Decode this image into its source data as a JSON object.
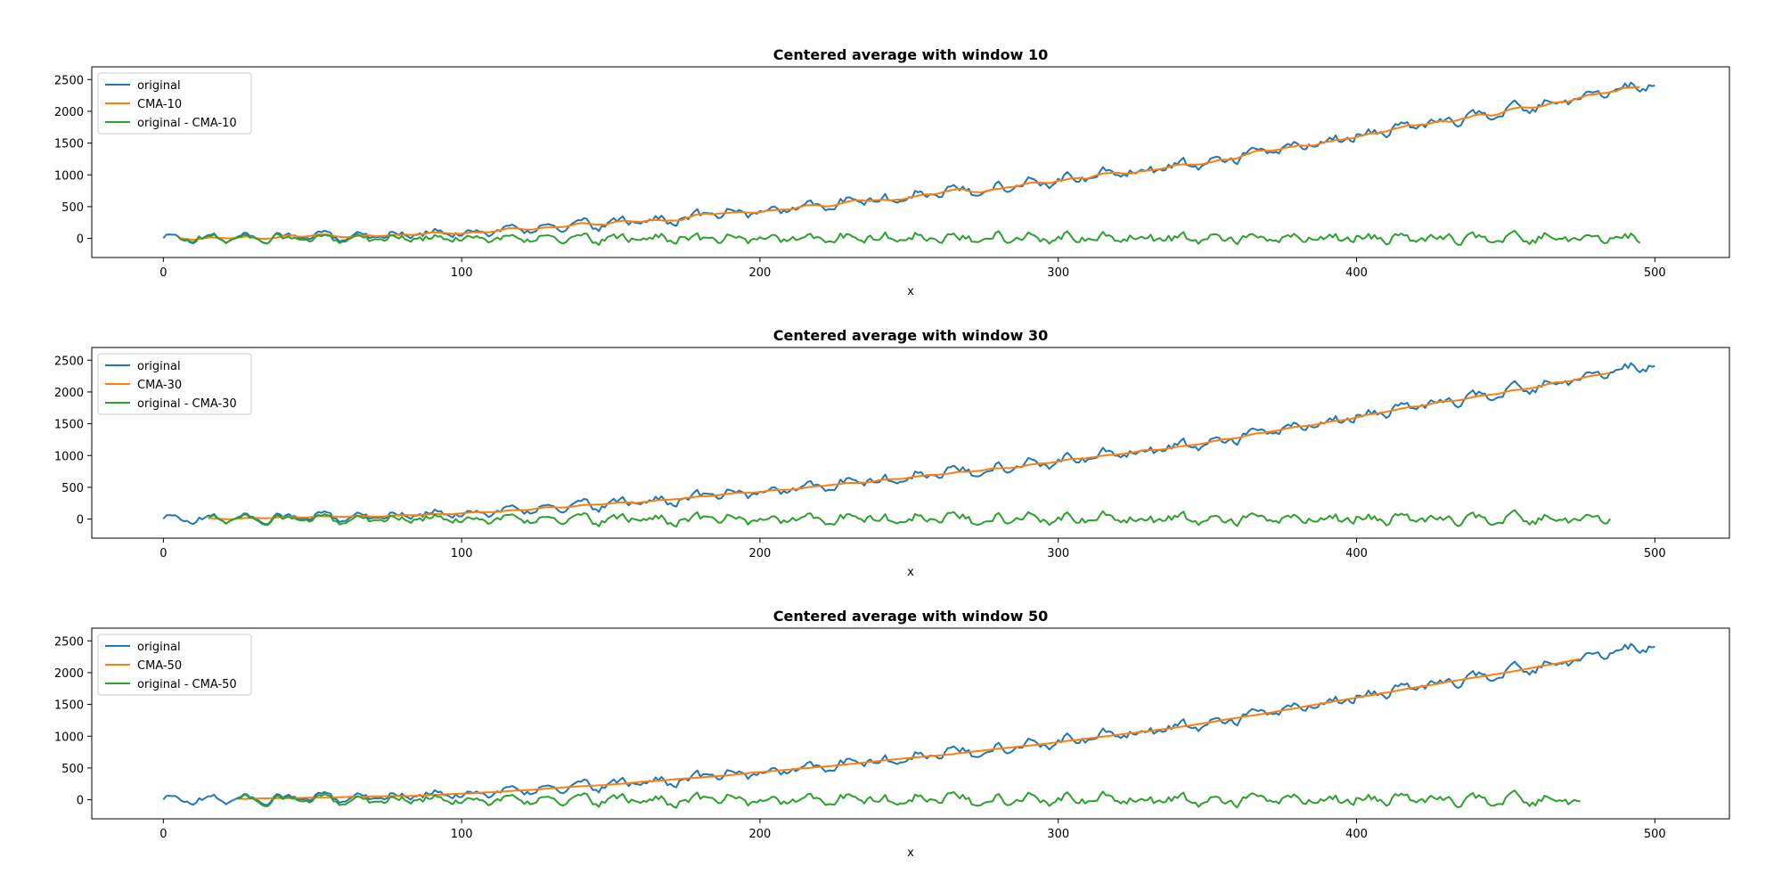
{
  "colors": {
    "original": "#1f77b4",
    "cma": "#ff7f0e",
    "residual": "#2ca02c"
  },
  "chart_data": [
    {
      "type": "line",
      "title": "Centered average with window 10",
      "xlabel": "x",
      "ylabel": "",
      "window": 10,
      "xlim": [
        -24,
        525
      ],
      "ylim": [
        -300,
        2700
      ],
      "xticks": [
        0,
        100,
        200,
        300,
        400,
        500
      ],
      "yticks": [
        0,
        500,
        1000,
        1500,
        2000,
        2500
      ],
      "grid": false,
      "legend_position": "upper-left",
      "series": [
        {
          "name": "original",
          "key": "original",
          "x_range": [
            0,
            500
          ]
        },
        {
          "name": "CMA-10",
          "key": "cma",
          "x_range": [
            5,
            495
          ]
        },
        {
          "name": "original - CMA-10",
          "key": "residual",
          "x_range": [
            5,
            495
          ]
        }
      ],
      "trend_points": [
        [
          0,
          0
        ],
        [
          50,
          25
        ],
        [
          100,
          90
        ],
        [
          150,
          230
        ],
        [
          200,
          420
        ],
        [
          250,
          660
        ],
        [
          300,
          920
        ],
        [
          350,
          1200
        ],
        [
          400,
          1620
        ],
        [
          450,
          2000
        ],
        [
          500,
          2450
        ]
      ]
    },
    {
      "type": "line",
      "title": "Centered average with window 30",
      "xlabel": "x",
      "ylabel": "",
      "window": 30,
      "xlim": [
        -24,
        525
      ],
      "ylim": [
        -300,
        2700
      ],
      "xticks": [
        0,
        100,
        200,
        300,
        400,
        500
      ],
      "yticks": [
        0,
        500,
        1000,
        1500,
        2000,
        2500
      ],
      "grid": false,
      "legend_position": "upper-left",
      "series": [
        {
          "name": "original",
          "key": "original",
          "x_range": [
            0,
            500
          ]
        },
        {
          "name": "CMA-30",
          "key": "cma",
          "x_range": [
            15,
            485
          ]
        },
        {
          "name": "original - CMA-30",
          "key": "residual",
          "x_range": [
            15,
            485
          ]
        }
      ],
      "trend_points": [
        [
          0,
          0
        ],
        [
          50,
          25
        ],
        [
          100,
          90
        ],
        [
          150,
          230
        ],
        [
          200,
          420
        ],
        [
          250,
          660
        ],
        [
          300,
          920
        ],
        [
          350,
          1200
        ],
        [
          400,
          1620
        ],
        [
          450,
          2000
        ],
        [
          500,
          2450
        ]
      ]
    },
    {
      "type": "line",
      "title": "Centered average with window 50",
      "xlabel": "x",
      "ylabel": "",
      "window": 50,
      "xlim": [
        -24,
        525
      ],
      "ylim": [
        -300,
        2700
      ],
      "xticks": [
        0,
        100,
        200,
        300,
        400,
        500
      ],
      "yticks": [
        0,
        500,
        1000,
        1500,
        2000,
        2500
      ],
      "grid": false,
      "legend_position": "upper-left",
      "series": [
        {
          "name": "original",
          "key": "original",
          "x_range": [
            0,
            500
          ]
        },
        {
          "name": "CMA-50",
          "key": "cma",
          "x_range": [
            25,
            475
          ]
        },
        {
          "name": "original - CMA-50",
          "key": "residual",
          "x_range": [
            25,
            475
          ]
        }
      ],
      "trend_points": [
        [
          0,
          0
        ],
        [
          50,
          25
        ],
        [
          100,
          90
        ],
        [
          150,
          230
        ],
        [
          200,
          420
        ],
        [
          250,
          660
        ],
        [
          300,
          920
        ],
        [
          350,
          1200
        ],
        [
          400,
          1620
        ],
        [
          450,
          2000
        ],
        [
          500,
          2450
        ]
      ]
    }
  ]
}
